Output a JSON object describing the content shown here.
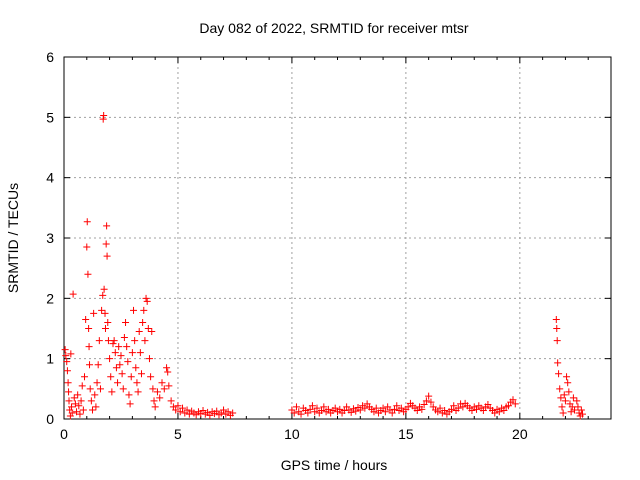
{
  "chart_data": {
    "type": "scatter",
    "title": "Day 082 of 2022, SRMTID for receiver mtsr",
    "xlabel": "GPS time / hours",
    "ylabel": "SRMTID / TECUs",
    "xlim": [
      0,
      24
    ],
    "ylim": [
      0,
      6
    ],
    "xticks": [
      0,
      5,
      10,
      15,
      20
    ],
    "xtick_labels": [
      "0",
      "5",
      "10",
      "15",
      "20"
    ],
    "yticks": [
      0,
      1,
      2,
      3,
      4,
      5,
      6
    ],
    "ytick_labels": [
      "0",
      "1",
      "2",
      "3",
      "4",
      "5",
      "6"
    ],
    "grid": true,
    "marker": "+",
    "colors": {
      "series": "#ff0000",
      "grid": "#a0a0a0",
      "axis": "#000000"
    },
    "series": [
      {
        "name": "SRMTID",
        "points": [
          [
            0.05,
            1.15
          ],
          [
            0.08,
            1.05
          ],
          [
            0.12,
            0.95
          ],
          [
            0.15,
            0.8
          ],
          [
            0.18,
            0.6
          ],
          [
            0.2,
            0.45
          ],
          [
            0.22,
            0.3
          ],
          [
            0.25,
            0.15
          ],
          [
            0.28,
            0.05
          ],
          [
            0.3,
            1.08
          ],
          [
            0.33,
            0.2
          ],
          [
            0.36,
            0.1
          ],
          [
            0.4,
            2.07
          ],
          [
            0.45,
            0.35
          ],
          [
            0.5,
            0.25
          ],
          [
            0.55,
            0.12
          ],
          [
            0.6,
            0.4
          ],
          [
            0.65,
            0.22
          ],
          [
            0.7,
            0.08
          ],
          [
            0.75,
            0.3
          ],
          [
            0.8,
            0.55
          ],
          [
            0.85,
            0.15
          ],
          [
            0.9,
            0.7
          ],
          [
            0.95,
            1.65
          ],
          [
            1.0,
            2.85
          ],
          [
            1.02,
            3.27
          ],
          [
            1.05,
            2.4
          ],
          [
            1.08,
            1.5
          ],
          [
            1.1,
            1.2
          ],
          [
            1.12,
            0.9
          ],
          [
            1.15,
            0.5
          ],
          [
            1.2,
            0.3
          ],
          [
            1.25,
            0.15
          ],
          [
            1.3,
            1.75
          ],
          [
            1.35,
            0.4
          ],
          [
            1.4,
            0.2
          ],
          [
            1.45,
            0.6
          ],
          [
            1.5,
            0.9
          ],
          [
            1.55,
            1.3
          ],
          [
            1.6,
            0.5
          ],
          [
            1.65,
            1.8
          ],
          [
            1.7,
            2.05
          ],
          [
            1.72,
            4.97
          ],
          [
            1.74,
            5.03
          ],
          [
            1.76,
            2.15
          ],
          [
            1.8,
            1.75
          ],
          [
            1.82,
            1.5
          ],
          [
            1.85,
            2.9
          ],
          [
            1.87,
            3.2
          ],
          [
            1.89,
            2.7
          ],
          [
            1.92,
            1.6
          ],
          [
            1.95,
            1.3
          ],
          [
            2.0,
            1.0
          ],
          [
            2.05,
            0.7
          ],
          [
            2.1,
            0.45
          ],
          [
            2.15,
            1.25
          ],
          [
            2.2,
            1.3
          ],
          [
            2.25,
            1.1
          ],
          [
            2.3,
            0.85
          ],
          [
            2.35,
            0.6
          ],
          [
            2.4,
            1.2
          ],
          [
            2.45,
            0.9
          ],
          [
            2.5,
            1.05
          ],
          [
            2.55,
            0.75
          ],
          [
            2.6,
            0.5
          ],
          [
            2.65,
            1.35
          ],
          [
            2.7,
            1.6
          ],
          [
            2.75,
            1.2
          ],
          [
            2.8,
            0.95
          ],
          [
            2.85,
            0.4
          ],
          [
            2.9,
            0.25
          ],
          [
            2.95,
            0.7
          ],
          [
            3.0,
            1.1
          ],
          [
            3.05,
            1.8
          ],
          [
            3.1,
            1.3
          ],
          [
            3.15,
            0.85
          ],
          [
            3.2,
            0.6
          ],
          [
            3.25,
            0.45
          ],
          [
            3.3,
            1.45
          ],
          [
            3.35,
            1.1
          ],
          [
            3.4,
            0.75
          ],
          [
            3.45,
            1.6
          ],
          [
            3.5,
            1.8
          ],
          [
            3.55,
            1.3
          ],
          [
            3.6,
            2.0
          ],
          [
            3.65,
            1.95
          ],
          [
            3.7,
            1.5
          ],
          [
            3.75,
            1.0
          ],
          [
            3.8,
            0.7
          ],
          [
            3.85,
            1.45
          ],
          [
            3.9,
            0.5
          ],
          [
            3.95,
            0.3
          ],
          [
            4.0,
            0.2
          ],
          [
            4.1,
            0.45
          ],
          [
            4.2,
            0.35
          ],
          [
            4.3,
            0.6
          ],
          [
            4.4,
            0.5
          ],
          [
            4.5,
            0.85
          ],
          [
            4.55,
            0.78
          ],
          [
            4.6,
            0.55
          ],
          [
            4.7,
            0.3
          ],
          [
            4.8,
            0.2
          ],
          [
            4.9,
            0.15
          ],
          [
            5.0,
            0.22
          ],
          [
            5.1,
            0.12
          ],
          [
            5.2,
            0.18
          ],
          [
            5.3,
            0.1
          ],
          [
            5.4,
            0.15
          ],
          [
            5.5,
            0.08
          ],
          [
            5.6,
            0.13
          ],
          [
            5.7,
            0.1
          ],
          [
            5.8,
            0.07
          ],
          [
            5.9,
            0.12
          ],
          [
            6.0,
            0.09
          ],
          [
            6.1,
            0.14
          ],
          [
            6.2,
            0.08
          ],
          [
            6.3,
            0.11
          ],
          [
            6.4,
            0.06
          ],
          [
            6.5,
            0.12
          ],
          [
            6.6,
            0.09
          ],
          [
            6.7,
            0.13
          ],
          [
            6.8,
            0.07
          ],
          [
            6.9,
            0.1
          ],
          [
            7.0,
            0.15
          ],
          [
            7.1,
            0.08
          ],
          [
            7.2,
            0.12
          ],
          [
            7.3,
            0.06
          ],
          [
            7.4,
            0.1
          ],
          [
            10.0,
            0.15
          ],
          [
            10.1,
            0.1
          ],
          [
            10.2,
            0.2
          ],
          [
            10.3,
            0.12
          ],
          [
            10.4,
            0.08
          ],
          [
            10.5,
            0.18
          ],
          [
            10.6,
            0.14
          ],
          [
            10.7,
            0.1
          ],
          [
            10.8,
            0.16
          ],
          [
            10.9,
            0.22
          ],
          [
            11.0,
            0.12
          ],
          [
            11.1,
            0.18
          ],
          [
            11.2,
            0.1
          ],
          [
            11.3,
            0.14
          ],
          [
            11.4,
            0.2
          ],
          [
            11.5,
            0.12
          ],
          [
            11.6,
            0.16
          ],
          [
            11.7,
            0.1
          ],
          [
            11.8,
            0.14
          ],
          [
            11.9,
            0.18
          ],
          [
            12.0,
            0.12
          ],
          [
            12.1,
            0.16
          ],
          [
            12.2,
            0.1
          ],
          [
            12.3,
            0.14
          ],
          [
            12.4,
            0.2
          ],
          [
            12.5,
            0.15
          ],
          [
            12.6,
            0.11
          ],
          [
            12.7,
            0.17
          ],
          [
            12.8,
            0.13
          ],
          [
            12.9,
            0.19
          ],
          [
            13.0,
            0.15
          ],
          [
            13.1,
            0.22
          ],
          [
            13.2,
            0.18
          ],
          [
            13.3,
            0.25
          ],
          [
            13.4,
            0.2
          ],
          [
            13.5,
            0.16
          ],
          [
            13.6,
            0.12
          ],
          [
            13.7,
            0.18
          ],
          [
            13.8,
            0.1
          ],
          [
            13.9,
            0.14
          ],
          [
            14.0,
            0.18
          ],
          [
            14.1,
            0.12
          ],
          [
            14.2,
            0.2
          ],
          [
            14.3,
            0.15
          ],
          [
            14.4,
            0.1
          ],
          [
            14.5,
            0.16
          ],
          [
            14.6,
            0.22
          ],
          [
            14.7,
            0.14
          ],
          [
            14.8,
            0.18
          ],
          [
            14.9,
            0.12
          ],
          [
            15.0,
            0.16
          ],
          [
            15.1,
            0.2
          ],
          [
            15.2,
            0.26
          ],
          [
            15.3,
            0.22
          ],
          [
            15.4,
            0.18
          ],
          [
            15.5,
            0.14
          ],
          [
            15.6,
            0.2
          ],
          [
            15.7,
            0.16
          ],
          [
            15.8,
            0.24
          ],
          [
            15.9,
            0.3
          ],
          [
            16.0,
            0.38
          ],
          [
            16.1,
            0.28
          ],
          [
            16.2,
            0.2
          ],
          [
            16.3,
            0.15
          ],
          [
            16.4,
            0.12
          ],
          [
            16.5,
            0.18
          ],
          [
            16.6,
            0.1
          ],
          [
            16.7,
            0.14
          ],
          [
            16.8,
            0.08
          ],
          [
            16.9,
            0.12
          ],
          [
            17.0,
            0.16
          ],
          [
            17.1,
            0.22
          ],
          [
            17.2,
            0.14
          ],
          [
            17.3,
            0.18
          ],
          [
            17.4,
            0.25
          ],
          [
            17.5,
            0.2
          ],
          [
            17.6,
            0.26
          ],
          [
            17.7,
            0.22
          ],
          [
            17.8,
            0.18
          ],
          [
            17.9,
            0.14
          ],
          [
            18.0,
            0.2
          ],
          [
            18.1,
            0.16
          ],
          [
            18.2,
            0.22
          ],
          [
            18.3,
            0.18
          ],
          [
            18.4,
            0.14
          ],
          [
            18.5,
            0.2
          ],
          [
            18.6,
            0.24
          ],
          [
            18.7,
            0.18
          ],
          [
            18.8,
            0.14
          ],
          [
            18.9,
            0.1
          ],
          [
            19.0,
            0.16
          ],
          [
            19.1,
            0.12
          ],
          [
            19.2,
            0.18
          ],
          [
            19.3,
            0.14
          ],
          [
            19.4,
            0.2
          ],
          [
            19.5,
            0.22
          ],
          [
            19.6,
            0.28
          ],
          [
            19.7,
            0.32
          ],
          [
            19.8,
            0.25
          ],
          [
            21.6,
            1.65
          ],
          [
            21.62,
            1.5
          ],
          [
            21.64,
            1.3
          ],
          [
            21.66,
            0.93
          ],
          [
            21.7,
            0.75
          ],
          [
            21.75,
            0.5
          ],
          [
            21.8,
            0.35
          ],
          [
            21.85,
            0.2
          ],
          [
            21.9,
            0.1
          ],
          [
            21.95,
            0.4
          ],
          [
            22.0,
            0.3
          ],
          [
            22.05,
            0.7
          ],
          [
            22.1,
            0.6
          ],
          [
            22.15,
            0.45
          ],
          [
            22.2,
            0.25
          ],
          [
            22.25,
            0.12
          ],
          [
            22.3,
            0.2
          ],
          [
            22.35,
            0.35
          ],
          [
            22.4,
            0.15
          ],
          [
            22.5,
            0.3
          ],
          [
            22.55,
            0.2
          ],
          [
            22.6,
            0.1
          ],
          [
            22.65,
            0.05
          ],
          [
            22.7,
            0.15
          ],
          [
            22.75,
            0.08
          ]
        ]
      }
    ]
  }
}
